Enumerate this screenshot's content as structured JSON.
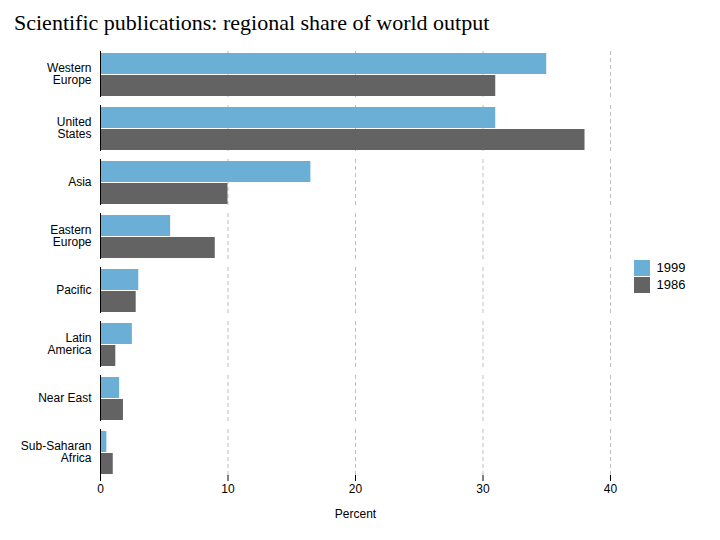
{
  "chart_data": {
    "type": "bar",
    "orientation": "horizontal",
    "title": "Scientific publications: regional share of world output",
    "categories": [
      "Western\nEurope",
      "United\nStates",
      "Asia",
      "Eastern\nEurope",
      "Pacific",
      "Latin\nAmerica",
      "Near East",
      "Sub-Saharan\nAfrica"
    ],
    "series": [
      {
        "name": "1999",
        "color": "#6baed6",
        "values": [
          35,
          31,
          16.5,
          5.5,
          3,
          2.5,
          1.5,
          0.5
        ]
      },
      {
        "name": "1986",
        "color": "#636363",
        "values": [
          31,
          38,
          10,
          9,
          2.8,
          1.2,
          1.8,
          1.0
        ]
      }
    ],
    "xlabel": "Percent",
    "xlim": [
      0,
      40
    ],
    "xticks": [
      0,
      10,
      20,
      30,
      40
    ],
    "grid": true,
    "legend": "right"
  }
}
